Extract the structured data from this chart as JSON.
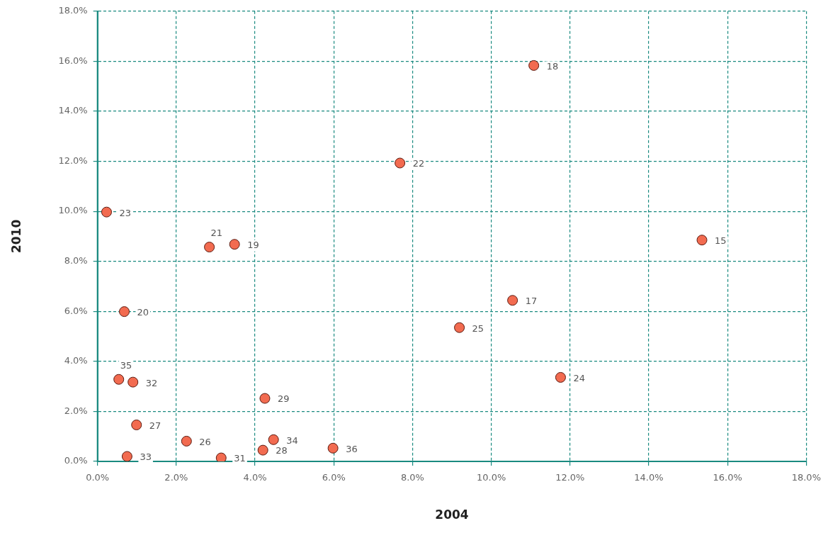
{
  "chart_data": {
    "type": "scatter",
    "xlabel": "2004",
    "ylabel": "2010",
    "marker": "circle",
    "grid": true,
    "legend": false,
    "xlim": [
      0,
      18
    ],
    "ylim": [
      0,
      18
    ],
    "xticks": [
      {
        "value": 0,
        "label": "0.0%"
      },
      {
        "value": 2,
        "label": "2.0%"
      },
      {
        "value": 4,
        "label": "4.0%"
      },
      {
        "value": 6,
        "label": "6.0%"
      },
      {
        "value": 8,
        "label": "8.0%"
      },
      {
        "value": 10,
        "label": "10.0%"
      },
      {
        "value": 12,
        "label": "12.0%"
      },
      {
        "value": 14,
        "label": "14.0%"
      },
      {
        "value": 16,
        "label": "16.0%"
      },
      {
        "value": 18,
        "label": "18.0%"
      }
    ],
    "yticks": [
      {
        "value": 0,
        "label": "0.0%"
      },
      {
        "value": 2,
        "label": "2.0%"
      },
      {
        "value": 4,
        "label": "4.0%"
      },
      {
        "value": 6,
        "label": "6.0%"
      },
      {
        "value": 8,
        "label": "8.0%"
      },
      {
        "value": 10,
        "label": "10.0%"
      },
      {
        "value": 12,
        "label": "12.0%"
      },
      {
        "value": 14,
        "label": "14.0%"
      },
      {
        "value": 16,
        "label": "16.0%"
      },
      {
        "value": 18,
        "label": "18.0%"
      }
    ],
    "series": [
      {
        "color": "#f26b50",
        "x": [
          11.08,
          7.68,
          0.23,
          2.84,
          3.48,
          15.35,
          10.54,
          0.68,
          9.19,
          11.76,
          0.54,
          0.9,
          4.25,
          0.99,
          2.26,
          4.47,
          4.2,
          5.98,
          3.14,
          0.75
        ],
        "values": [
          15.83,
          11.93,
          9.97,
          8.57,
          8.68,
          8.85,
          6.44,
          5.99,
          5.35,
          3.36,
          3.28,
          3.17,
          2.52,
          1.46,
          0.81,
          0.87,
          0.45,
          0.53,
          0.14,
          0.2
        ]
      }
    ],
    "annotations": [
      {
        "text": "18",
        "x": 11.08,
        "y": 15.83
      },
      {
        "text": "22",
        "x": 7.68,
        "y": 11.93
      },
      {
        "text": "23",
        "x": 0.23,
        "y": 9.97
      },
      {
        "text": "21",
        "x": 2.84,
        "y": 8.57
      },
      {
        "text": "19",
        "x": 3.48,
        "y": 8.68
      },
      {
        "text": "15",
        "x": 15.35,
        "y": 8.85
      },
      {
        "text": "17",
        "x": 10.54,
        "y": 6.44
      },
      {
        "text": "20",
        "x": 0.68,
        "y": 5.99
      },
      {
        "text": "25",
        "x": 9.19,
        "y": 5.35
      },
      {
        "text": "24",
        "x": 11.76,
        "y": 3.36
      },
      {
        "text": "35",
        "x": 0.54,
        "y": 3.28
      },
      {
        "text": "32",
        "x": 0.9,
        "y": 3.17
      },
      {
        "text": "29",
        "x": 4.25,
        "y": 2.52
      },
      {
        "text": "27",
        "x": 0.99,
        "y": 1.46
      },
      {
        "text": "26",
        "x": 2.26,
        "y": 0.81
      },
      {
        "text": "34",
        "x": 4.47,
        "y": 0.87
      },
      {
        "text": "28",
        "x": 4.2,
        "y": 0.45
      },
      {
        "text": "36",
        "x": 5.98,
        "y": 0.53
      },
      {
        "text": "31",
        "x": 3.14,
        "y": 0.14
      },
      {
        "text": "33",
        "x": 0.75,
        "y": 0.2
      }
    ]
  }
}
